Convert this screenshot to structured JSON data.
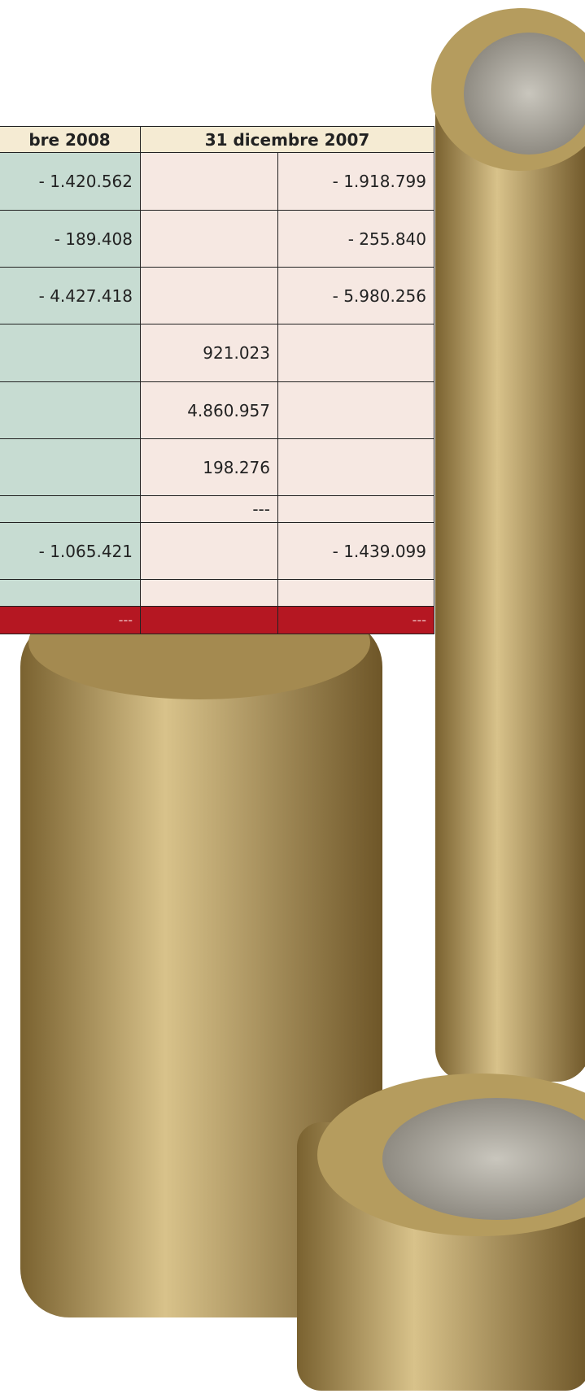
{
  "table": {
    "headers": [
      "bre 2008",
      "31 dicembre 2007"
    ],
    "rows": [
      [
        "- 1.420.562",
        null,
        "- 1.918.799"
      ],
      [
        "- 189.408",
        null,
        "- 255.840"
      ],
      [
        "- 4.427.418",
        null,
        "- 5.980.256"
      ],
      [
        null,
        "921.023",
        null
      ],
      [
        null,
        "4.860.957",
        null
      ],
      [
        null,
        "198.276",
        null
      ],
      [
        null,
        "---",
        null
      ],
      [
        "- 1.065.421",
        null,
        "- 1.439.099"
      ],
      [
        null,
        null,
        null
      ],
      [
        "---",
        null,
        "---"
      ]
    ]
  }
}
